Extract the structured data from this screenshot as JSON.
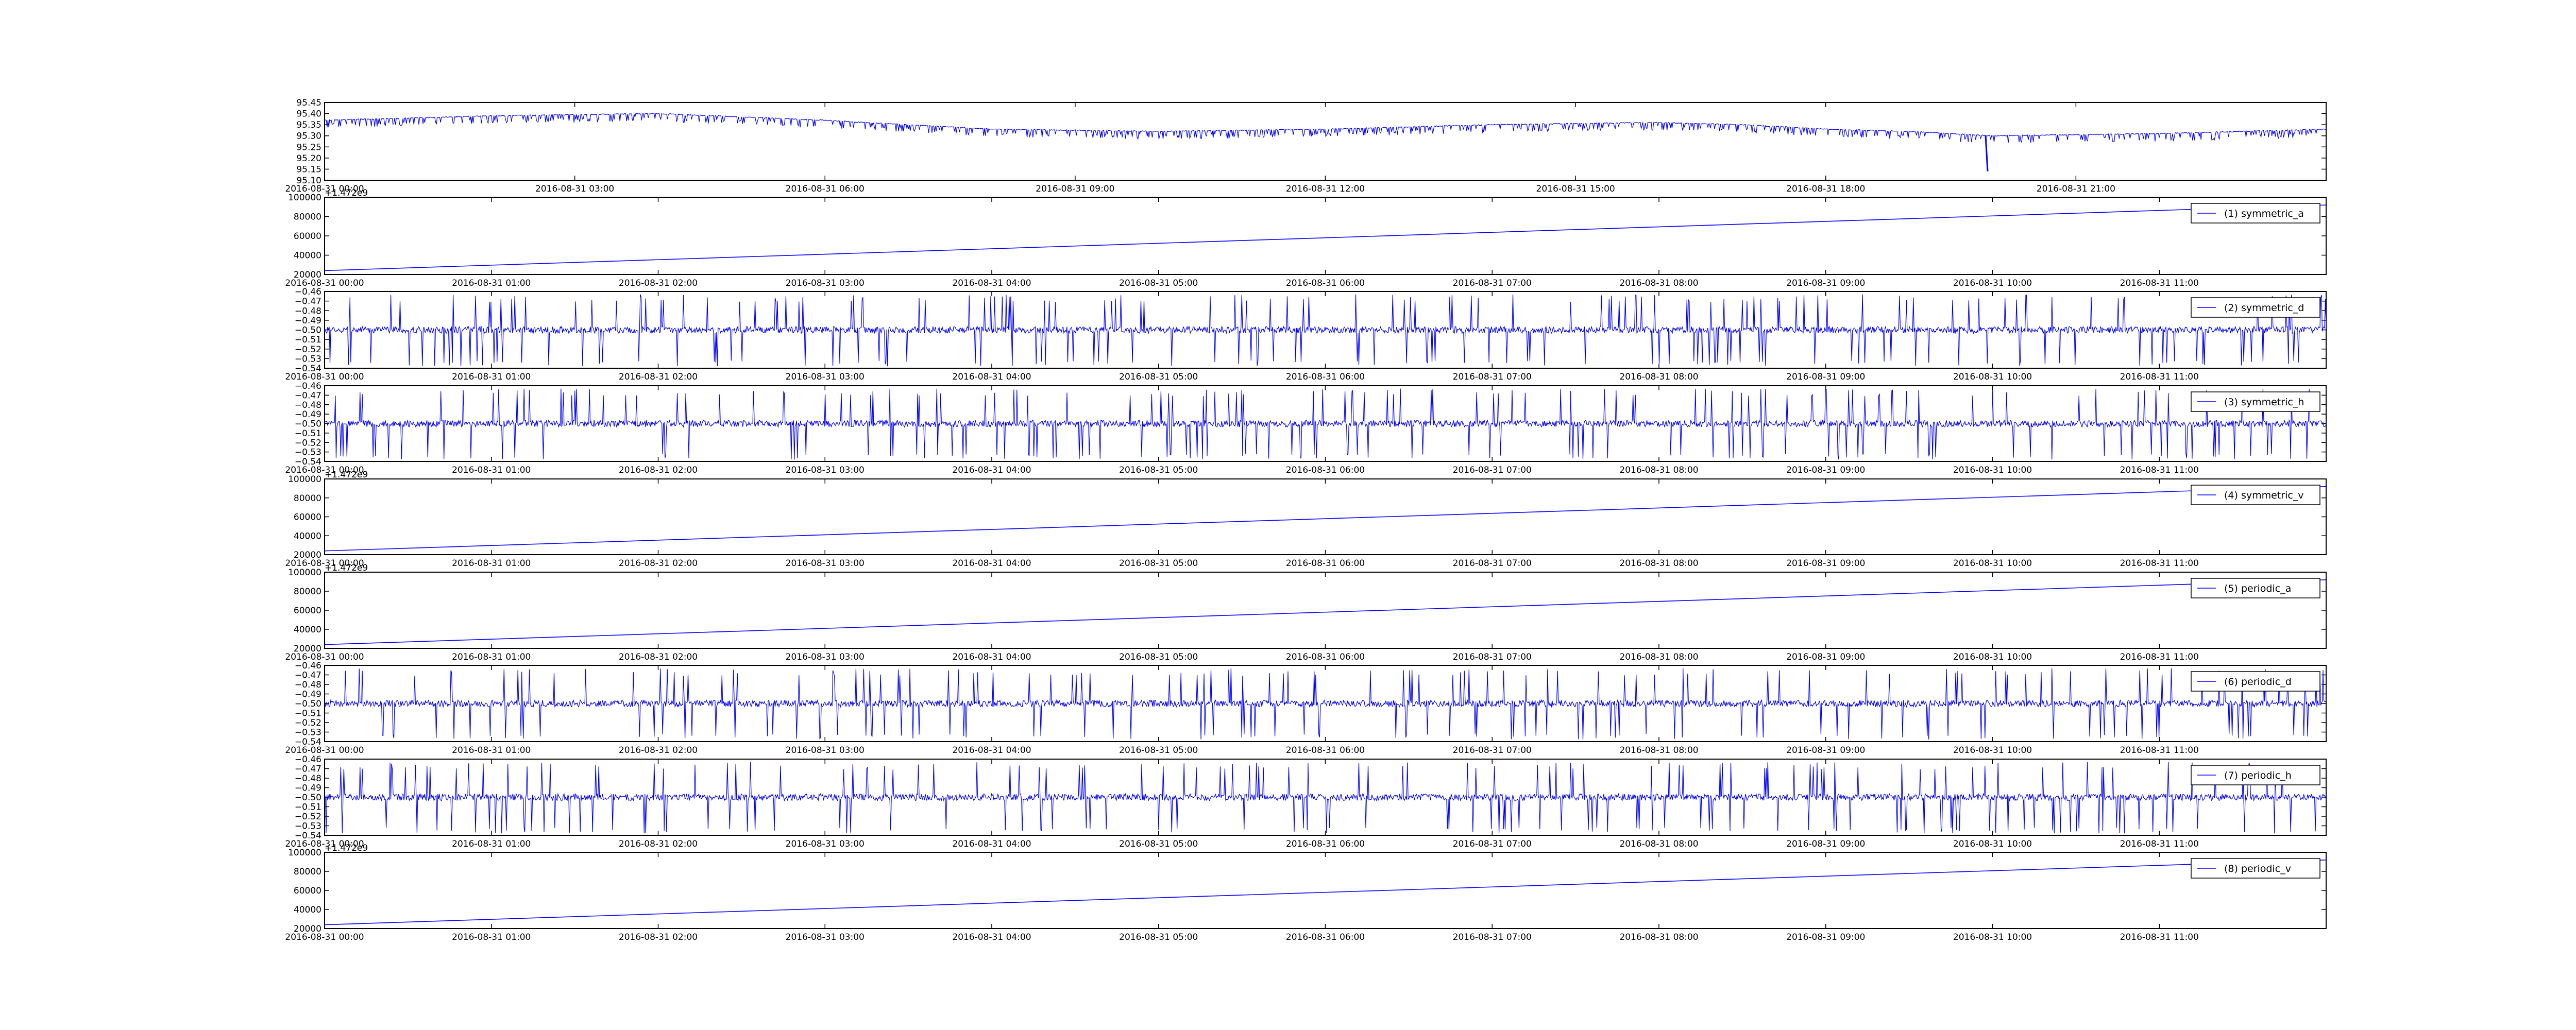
{
  "colors": {
    "line": "#0000ff",
    "frame": "#000000",
    "background": "#ffffff"
  },
  "chart_data": [
    {
      "type": "line",
      "pattern": "dips",
      "x": [
        "2016-08-31 00:00",
        "2016-08-31 02:00",
        "2016-08-31 04:00",
        "2016-08-31 06:00",
        "2016-08-31 08:00",
        "2016-08-31 10:00",
        "2016-08-31 12:00",
        "2016-08-31 14:00",
        "2016-08-31 16:00",
        "2016-08-31 17:00",
        "2016-08-31 18:00",
        "2016-08-31 19:00",
        "2016-08-31 20:00",
        "2016-08-31 22:00",
        "2016-08-31 24:00"
      ],
      "series": [
        {
          "values": [
            95.37,
            95.39,
            95.4,
            95.37,
            95.33,
            95.32,
            95.33,
            95.35,
            95.36,
            95.35,
            95.33,
            95.32,
            95.3,
            95.31,
            95.33
          ]
        }
      ],
      "ylim": [
        95.1,
        95.45
      ],
      "yticks": [
        "95.10",
        "95.15",
        "95.20",
        "95.25",
        "95.30",
        "95.35",
        "95.40",
        "95.45"
      ],
      "xticks": [
        "2016-08-31 00:00",
        "2016-08-31 03:00",
        "2016-08-31 06:00",
        "2016-08-31 09:00",
        "2016-08-31 12:00",
        "2016-08-31 15:00",
        "2016-08-31 18:00",
        "2016-08-31 21:00"
      ],
      "offset_text": "",
      "legend": "",
      "grid": false
    },
    {
      "type": "line",
      "pattern": "linear",
      "x": [
        "2016-08-31 00:00",
        "2016-08-31 12:00"
      ],
      "series": [
        {
          "name": "(1) symmetric_a",
          "values": [
            15000,
            100000
          ]
        }
      ],
      "ylim": [
        10000,
        110000
      ],
      "yticks": [
        "20000",
        "40000",
        "60000",
        "80000",
        "100000"
      ],
      "xticks": [
        "2016-08-31 00:00",
        "2016-08-31 01:00",
        "2016-08-31 02:00",
        "2016-08-31 03:00",
        "2016-08-31 04:00",
        "2016-08-31 05:00",
        "2016-08-31 06:00",
        "2016-08-31 07:00",
        "2016-08-31 08:00",
        "2016-08-31 09:00",
        "2016-08-31 10:00",
        "2016-08-31 11:00"
      ],
      "offset_text": "+1.472e9",
      "legend": "(1) symmetric_a",
      "legend_loc": "upper right",
      "grid": false
    },
    {
      "type": "line",
      "pattern": "noise",
      "x": [
        "2016-08-31 00:00",
        "2016-08-31 12:00"
      ],
      "series": [
        {
          "name": "(2) symmetric_d",
          "values": [
            -0.5,
            -0.5
          ]
        }
      ],
      "ylim": [
        -0.54,
        -0.46
      ],
      "yticks": [
        "−0.54",
        "−0.53",
        "−0.52",
        "−0.51",
        "−0.50",
        "−0.49",
        "−0.48",
        "−0.47",
        "−0.46"
      ],
      "xticks": [
        "2016-08-31 00:00",
        "2016-08-31 01:00",
        "2016-08-31 02:00",
        "2016-08-31 03:00",
        "2016-08-31 04:00",
        "2016-08-31 05:00",
        "2016-08-31 06:00",
        "2016-08-31 07:00",
        "2016-08-31 08:00",
        "2016-08-31 09:00",
        "2016-08-31 10:00",
        "2016-08-31 11:00"
      ],
      "offset_text": "",
      "legend": "(2) symmetric_d",
      "legend_loc": "upper right",
      "grid": false
    },
    {
      "type": "line",
      "pattern": "noise",
      "x": [
        "2016-08-31 00:00",
        "2016-08-31 12:00"
      ],
      "series": [
        {
          "name": "(3) symmetric_h",
          "values": [
            -0.5,
            -0.5
          ]
        }
      ],
      "ylim": [
        -0.54,
        -0.46
      ],
      "yticks": [
        "−0.54",
        "−0.53",
        "−0.52",
        "−0.51",
        "−0.50",
        "−0.49",
        "−0.48",
        "−0.47",
        "−0.46"
      ],
      "xticks": [
        "2016-08-31 00:00",
        "2016-08-31 01:00",
        "2016-08-31 02:00",
        "2016-08-31 03:00",
        "2016-08-31 04:00",
        "2016-08-31 05:00",
        "2016-08-31 06:00",
        "2016-08-31 07:00",
        "2016-08-31 08:00",
        "2016-08-31 09:00",
        "2016-08-31 10:00",
        "2016-08-31 11:00"
      ],
      "offset_text": "",
      "legend": "(3) symmetric_h",
      "legend_loc": "upper right",
      "grid": false
    },
    {
      "type": "line",
      "pattern": "linear",
      "x": [
        "2016-08-31 00:00",
        "2016-08-31 12:00"
      ],
      "series": [
        {
          "name": "(4) symmetric_v",
          "values": [
            15000,
            100000
          ]
        }
      ],
      "ylim": [
        10000,
        110000
      ],
      "yticks": [
        "20000",
        "40000",
        "60000",
        "80000",
        "100000"
      ],
      "xticks": [
        "2016-08-31 00:00",
        "2016-08-31 01:00",
        "2016-08-31 02:00",
        "2016-08-31 03:00",
        "2016-08-31 04:00",
        "2016-08-31 05:00",
        "2016-08-31 06:00",
        "2016-08-31 07:00",
        "2016-08-31 08:00",
        "2016-08-31 09:00",
        "2016-08-31 10:00",
        "2016-08-31 11:00"
      ],
      "offset_text": "+1.472e9",
      "legend": "(4) symmetric_v",
      "legend_loc": "upper right",
      "grid": false
    },
    {
      "type": "line",
      "pattern": "linear",
      "x": [
        "2016-08-31 00:00",
        "2016-08-31 12:00"
      ],
      "series": [
        {
          "name": "(5) periodic_a",
          "values": [
            15000,
            100000
          ]
        }
      ],
      "ylim": [
        10000,
        110000
      ],
      "yticks": [
        "20000",
        "40000",
        "60000",
        "80000",
        "100000"
      ],
      "xticks": [
        "2016-08-31 00:00",
        "2016-08-31 01:00",
        "2016-08-31 02:00",
        "2016-08-31 03:00",
        "2016-08-31 04:00",
        "2016-08-31 05:00",
        "2016-08-31 06:00",
        "2016-08-31 07:00",
        "2016-08-31 08:00",
        "2016-08-31 09:00",
        "2016-08-31 10:00",
        "2016-08-31 11:00"
      ],
      "offset_text": "+1.472e9",
      "legend": "(5) periodic_a",
      "legend_loc": "upper right",
      "grid": false
    },
    {
      "type": "line",
      "pattern": "noise",
      "x": [
        "2016-08-31 00:00",
        "2016-08-31 12:00"
      ],
      "series": [
        {
          "name": "(6) periodic_d",
          "values": [
            -0.5,
            -0.5
          ]
        }
      ],
      "ylim": [
        -0.54,
        -0.46
      ],
      "yticks": [
        "−0.54",
        "−0.53",
        "−0.52",
        "−0.51",
        "−0.50",
        "−0.49",
        "−0.48",
        "−0.47",
        "−0.46"
      ],
      "xticks": [
        "2016-08-31 00:00",
        "2016-08-31 01:00",
        "2016-08-31 02:00",
        "2016-08-31 03:00",
        "2016-08-31 04:00",
        "2016-08-31 05:00",
        "2016-08-31 06:00",
        "2016-08-31 07:00",
        "2016-08-31 08:00",
        "2016-08-31 09:00",
        "2016-08-31 10:00",
        "2016-08-31 11:00"
      ],
      "offset_text": "",
      "legend": "(6) periodic_d",
      "legend_loc": "upper right",
      "grid": false
    },
    {
      "type": "line",
      "pattern": "noise",
      "x": [
        "2016-08-31 00:00",
        "2016-08-31 12:00"
      ],
      "series": [
        {
          "name": "(7) periodic_h",
          "values": [
            -0.5,
            -0.5
          ]
        }
      ],
      "ylim": [
        -0.54,
        -0.46
      ],
      "yticks": [
        "−0.54",
        "−0.53",
        "−0.52",
        "−0.51",
        "−0.50",
        "−0.49",
        "−0.48",
        "−0.47",
        "−0.46"
      ],
      "xticks": [
        "2016-08-31 00:00",
        "2016-08-31 01:00",
        "2016-08-31 02:00",
        "2016-08-31 03:00",
        "2016-08-31 04:00",
        "2016-08-31 05:00",
        "2016-08-31 06:00",
        "2016-08-31 07:00",
        "2016-08-31 08:00",
        "2016-08-31 09:00",
        "2016-08-31 10:00",
        "2016-08-31 11:00"
      ],
      "offset_text": "",
      "legend": "(7) periodic_h",
      "legend_loc": "upper right",
      "grid": false
    },
    {
      "type": "line",
      "pattern": "linear",
      "x": [
        "2016-08-31 00:00",
        "2016-08-31 12:00"
      ],
      "series": [
        {
          "name": "(8) periodic_v",
          "values": [
            15000,
            100000
          ]
        }
      ],
      "ylim": [
        10000,
        110000
      ],
      "yticks": [
        "20000",
        "40000",
        "60000",
        "80000",
        "100000"
      ],
      "xticks": [
        "2016-08-31 00:00",
        "2016-08-31 01:00",
        "2016-08-31 02:00",
        "2016-08-31 03:00",
        "2016-08-31 04:00",
        "2016-08-31 05:00",
        "2016-08-31 06:00",
        "2016-08-31 07:00",
        "2016-08-31 08:00",
        "2016-08-31 09:00",
        "2016-08-31 10:00",
        "2016-08-31 11:00"
      ],
      "offset_text": "+1.472e9",
      "legend": "(8) periodic_v",
      "legend_loc": "upper right",
      "grid": false
    }
  ]
}
